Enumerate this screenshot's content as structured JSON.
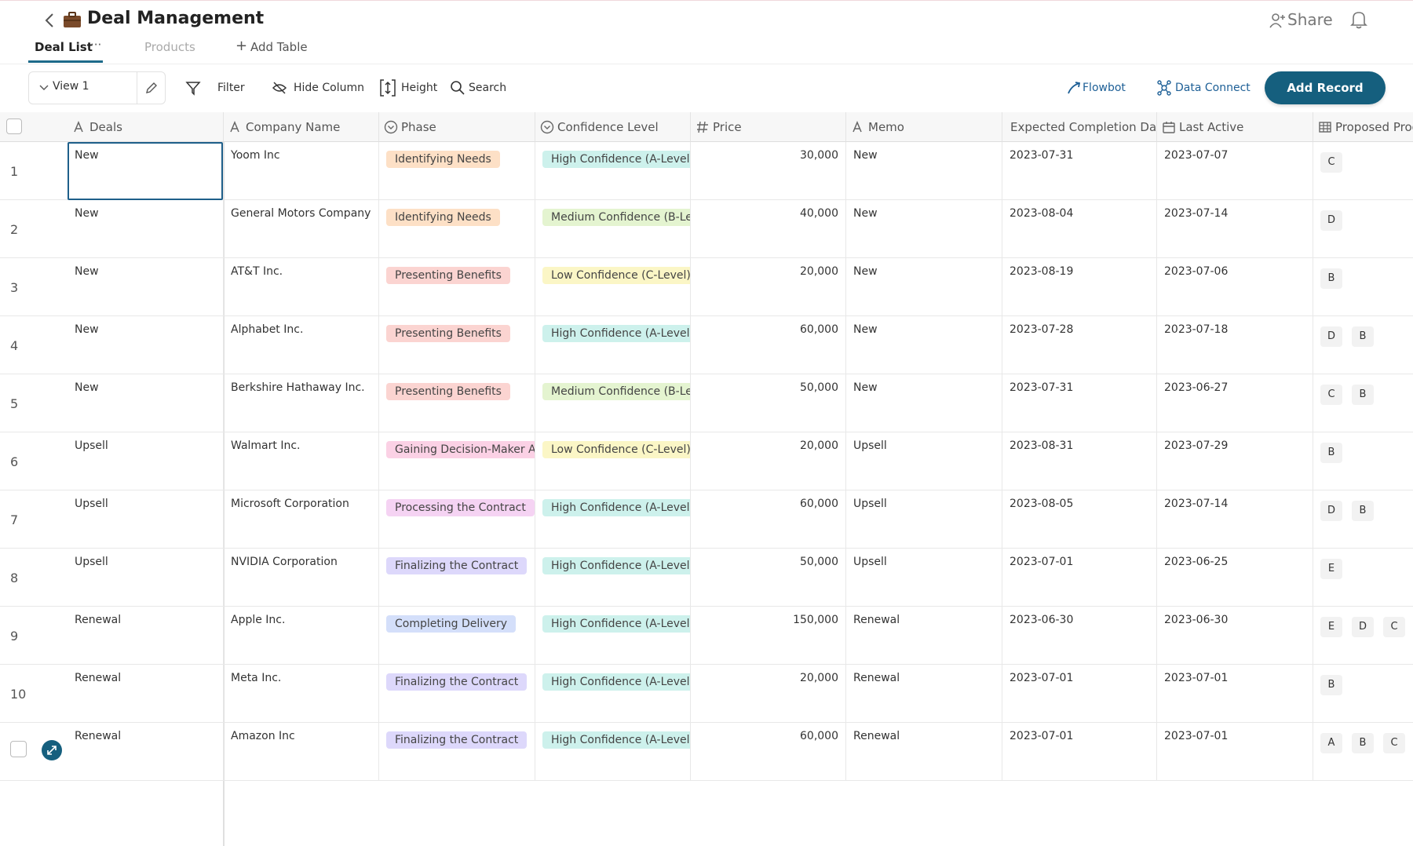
{
  "header": {
    "title": "Deal Management",
    "share": "Share"
  },
  "tabs": [
    "Deal List",
    "Products",
    "Add Table"
  ],
  "toolbar": {
    "view": "View 1",
    "filter": "Filter",
    "hide_column": "Hide Column",
    "height": "Height",
    "search": "Search",
    "flowbot": "Flowbot",
    "data_connect": "Data Connect",
    "add_record": "Add Record"
  },
  "table": {
    "columns": [
      "Deals",
      "Company Name",
      "Phase",
      "Confidence Level",
      "Price",
      "Memo",
      "Expected Completion Date",
      "Last Active",
      "Proposed Products"
    ],
    "rows": [
      {
        "number": "1",
        "deals": "New",
        "company": "Yoom Inc",
        "phase": {
          "text": "Identifying Needs",
          "color": "#fde0c6"
        },
        "confidence": {
          "text": "High Confidence (A-Level)",
          "color": "#cdf1ec"
        },
        "price": "30,000",
        "memo": "New",
        "expected": "2023-07-31",
        "last_active": "2023-07-07",
        "products": [
          "C"
        ]
      },
      {
        "number": "2",
        "deals": "New",
        "company": "General Motors Company",
        "phase": {
          "text": "Identifying Needs",
          "color": "#fde0c6"
        },
        "confidence": {
          "text": "Medium Confidence (B-Level)",
          "color": "#e4f4d0"
        },
        "price": "40,000",
        "memo": "New",
        "expected": "2023-08-04",
        "last_active": "2023-07-14",
        "products": [
          "D"
        ]
      },
      {
        "number": "3",
        "deals": "New",
        "company": "AT&T Inc.",
        "phase": {
          "text": "Presenting Benefits",
          "color": "#fbd4d1"
        },
        "confidence": {
          "text": "Low Confidence (C-Level)",
          "color": "#fbf6c6"
        },
        "price": "20,000",
        "memo": "New",
        "expected": "2023-08-19",
        "last_active": "2023-07-06",
        "products": [
          "B"
        ]
      },
      {
        "number": "4",
        "deals": "New",
        "company": "Alphabet Inc.",
        "phase": {
          "text": "Presenting Benefits",
          "color": "#fbd4d1"
        },
        "confidence": {
          "text": "High Confidence (A-Level)",
          "color": "#cdf1ec"
        },
        "price": "60,000",
        "memo": "New",
        "expected": "2023-07-28",
        "last_active": "2023-07-18",
        "products": [
          "D",
          "B"
        ]
      },
      {
        "number": "5",
        "deals": "New",
        "company": "Berkshire Hathaway Inc.",
        "phase": {
          "text": "Presenting Benefits",
          "color": "#fbd4d1"
        },
        "confidence": {
          "text": "Medium Confidence (B-Level)",
          "color": "#e4f4d0"
        },
        "price": "50,000",
        "memo": "New",
        "expected": "2023-07-31",
        "last_active": "2023-06-27",
        "products": [
          "C",
          "B"
        ]
      },
      {
        "number": "6",
        "deals": "Upsell",
        "company": "Walmart Inc.",
        "phase": {
          "text": "Gaining Decision-Maker Approval",
          "color": "#fbd1e5"
        },
        "confidence": {
          "text": "Low Confidence (C-Level)",
          "color": "#fbf6c6"
        },
        "price": "20,000",
        "memo": "Upsell",
        "expected": "2023-08-31",
        "last_active": "2023-07-29",
        "products": [
          "B"
        ]
      },
      {
        "number": "7",
        "deals": "Upsell",
        "company": "Microsoft Corporation",
        "phase": {
          "text": "Processing the Contract",
          "color": "#f5d3f3"
        },
        "confidence": {
          "text": "High Confidence (A-Level)",
          "color": "#cdf1ec"
        },
        "price": "60,000",
        "memo": "Upsell",
        "expected": "2023-08-05",
        "last_active": "2023-07-14",
        "products": [
          "D",
          "B"
        ]
      },
      {
        "number": "8",
        "deals": "Upsell",
        "company": "NVIDIA Corporation",
        "phase": {
          "text": "Finalizing the Contract",
          "color": "#ddd8fb"
        },
        "confidence": {
          "text": "High Confidence (A-Level)",
          "color": "#cdf1ec"
        },
        "price": "50,000",
        "memo": "Upsell",
        "expected": "2023-07-01",
        "last_active": "2023-06-25",
        "products": [
          "E"
        ]
      },
      {
        "number": "9",
        "deals": "Renewal",
        "company": "Apple Inc.",
        "phase": {
          "text": "Completing Delivery",
          "color": "#d4dffa"
        },
        "confidence": {
          "text": "High Confidence (A-Level)",
          "color": "#cdf1ec"
        },
        "price": "150,000",
        "memo": "Renewal",
        "expected": "2023-06-30",
        "last_active": "2023-06-30",
        "products": [
          "E",
          "D",
          "C"
        ]
      },
      {
        "number": "10",
        "deals": "Renewal",
        "company": "Meta Inc.",
        "phase": {
          "text": "Finalizing the Contract",
          "color": "#ddd8fb"
        },
        "confidence": {
          "text": "High Confidence (A-Level)",
          "color": "#cdf1ec"
        },
        "price": "20,000",
        "memo": "Renewal",
        "expected": "2023-07-01",
        "last_active": "2023-07-01",
        "products": [
          "B"
        ]
      },
      {
        "deals": "Renewal",
        "company": "Amazon Inc",
        "phase": {
          "text": "Finalizing the Contract",
          "color": "#ddd8fb"
        },
        "confidence": {
          "text": "High Confidence (A-Level)",
          "color": "#cdf1ec"
        },
        "price": "60,000",
        "memo": "Renewal",
        "expected": "2023-07-01",
        "last_active": "2023-07-01",
        "products": [
          "A",
          "B",
          "C"
        ]
      }
    ]
  }
}
